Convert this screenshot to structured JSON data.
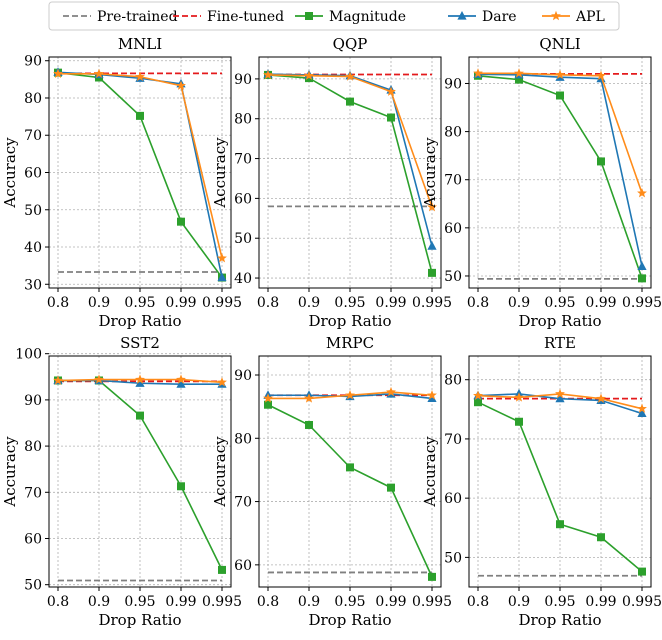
{
  "legend": [
    {
      "name": "Pre-trained",
      "color": "#808080",
      "style": "dashed",
      "marker": "none"
    },
    {
      "name": "Fine-tuned",
      "color": "#e41a1c",
      "style": "dashed",
      "marker": "none"
    },
    {
      "name": "Magnitude",
      "color": "#2ca02c",
      "style": "solid",
      "marker": "square"
    },
    {
      "name": "Dare",
      "color": "#1f77b4",
      "style": "solid",
      "marker": "triangle"
    },
    {
      "name": "APL",
      "color": "#ff8c1a",
      "style": "solid",
      "marker": "star"
    }
  ],
  "chart_data": [
    {
      "type": "line",
      "title": "MNLI",
      "xlabel": "Drop Ratio",
      "ylabel": "Accuracy",
      "categories": [
        "0.8",
        "0.9",
        "0.95",
        "0.99",
        "0.995"
      ],
      "ylim": [
        29,
        91
      ],
      "yticks": [
        30,
        40,
        50,
        60,
        70,
        80,
        90
      ],
      "grid": true,
      "pretrained": 33.3,
      "finetuned": 86.6,
      "series": [
        {
          "name": "Magnitude",
          "values": [
            86.8,
            85.5,
            75.2,
            46.8,
            31.8
          ]
        },
        {
          "name": "Dare",
          "values": [
            86.9,
            86.3,
            85.3,
            83.8,
            31.8
          ]
        },
        {
          "name": "APL",
          "values": [
            86.5,
            86.5,
            85.7,
            83.3,
            37.0
          ]
        }
      ]
    },
    {
      "type": "line",
      "title": "QQP",
      "xlabel": "Drop Ratio",
      "ylabel": "Accuracy",
      "categories": [
        "0.8",
        "0.9",
        "0.95",
        "0.99",
        "0.995"
      ],
      "ylim": [
        37.5,
        95.5
      ],
      "yticks": [
        40,
        50,
        60,
        70,
        80,
        90
      ],
      "grid": true,
      "pretrained": 58.0,
      "finetuned": 91.1,
      "series": [
        {
          "name": "Magnitude",
          "values": [
            91.0,
            90.2,
            84.3,
            80.3,
            41.3
          ]
        },
        {
          "name": "Dare",
          "values": [
            91.2,
            91.0,
            90.8,
            87.2,
            48.0
          ]
        },
        {
          "name": "APL",
          "values": [
            91.0,
            90.8,
            90.6,
            86.8,
            57.8
          ]
        }
      ]
    },
    {
      "type": "line",
      "title": "QNLI",
      "xlabel": "Drop Ratio",
      "ylabel": "Accuracy",
      "categories": [
        "0.8",
        "0.9",
        "0.95",
        "0.99",
        "0.995"
      ],
      "ylim": [
        47.5,
        95.5
      ],
      "yticks": [
        50,
        60,
        70,
        80,
        90
      ],
      "grid": true,
      "pretrained": 49.4,
      "finetuned": 92.0,
      "series": [
        {
          "name": "Magnitude",
          "values": [
            91.6,
            90.8,
            87.5,
            73.8,
            49.5
          ]
        },
        {
          "name": "Dare",
          "values": [
            91.9,
            91.8,
            91.3,
            91.0,
            52.0
          ]
        },
        {
          "name": "APL",
          "values": [
            92.1,
            92.1,
            91.8,
            91.6,
            67.2
          ]
        }
      ]
    },
    {
      "type": "line",
      "title": "SST2",
      "xlabel": "Drop Ratio",
      "ylabel": "Accuracy",
      "categories": [
        "0.8",
        "0.9",
        "0.95",
        "0.99",
        "0.995"
      ],
      "ylim": [
        49.5,
        99.5
      ],
      "yticks": [
        50,
        60,
        70,
        80,
        90,
        100
      ],
      "grid": true,
      "pretrained": 50.9,
      "finetuned": 94.0,
      "series": [
        {
          "name": "Magnitude",
          "values": [
            94.2,
            94.2,
            86.6,
            71.3,
            53.2
          ]
        },
        {
          "name": "Dare",
          "values": [
            94.2,
            94.2,
            93.6,
            93.4,
            93.4
          ]
        },
        {
          "name": "APL",
          "values": [
            94.2,
            94.4,
            94.4,
            94.4,
            93.8
          ]
        }
      ]
    },
    {
      "type": "line",
      "title": "MRPC",
      "xlabel": "Drop Ratio",
      "ylabel": "Accuracy",
      "categories": [
        "0.8",
        "0.9",
        "0.95",
        "0.99",
        "0.995"
      ],
      "ylim": [
        56.5,
        93.0
      ],
      "yticks": [
        60,
        70,
        80,
        90
      ],
      "grid": true,
      "pretrained": 58.8,
      "finetuned": 86.8,
      "series": [
        {
          "name": "Magnitude",
          "values": [
            85.3,
            82.1,
            75.4,
            72.2,
            58.1
          ]
        },
        {
          "name": "Dare",
          "values": [
            86.8,
            86.8,
            86.6,
            87.0,
            86.3
          ]
        },
        {
          "name": "APL",
          "values": [
            86.3,
            86.3,
            86.8,
            87.3,
            86.8
          ]
        }
      ]
    },
    {
      "type": "line",
      "title": "RTE",
      "xlabel": "Drop Ratio",
      "ylabel": "Accuracy",
      "categories": [
        "0.8",
        "0.9",
        "0.95",
        "0.99",
        "0.995"
      ],
      "ylim": [
        45.0,
        84.0
      ],
      "yticks": [
        50,
        60,
        70,
        80
      ],
      "grid": true,
      "pretrained": 46.9,
      "finetuned": 76.8,
      "series": [
        {
          "name": "Magnitude",
          "values": [
            76.2,
            72.9,
            55.6,
            53.4,
            47.6
          ]
        },
        {
          "name": "Dare",
          "values": [
            77.3,
            77.6,
            76.8,
            76.5,
            74.3
          ]
        },
        {
          "name": "APL",
          "values": [
            77.3,
            77.0,
            77.6,
            76.8,
            75.1
          ]
        }
      ]
    }
  ]
}
